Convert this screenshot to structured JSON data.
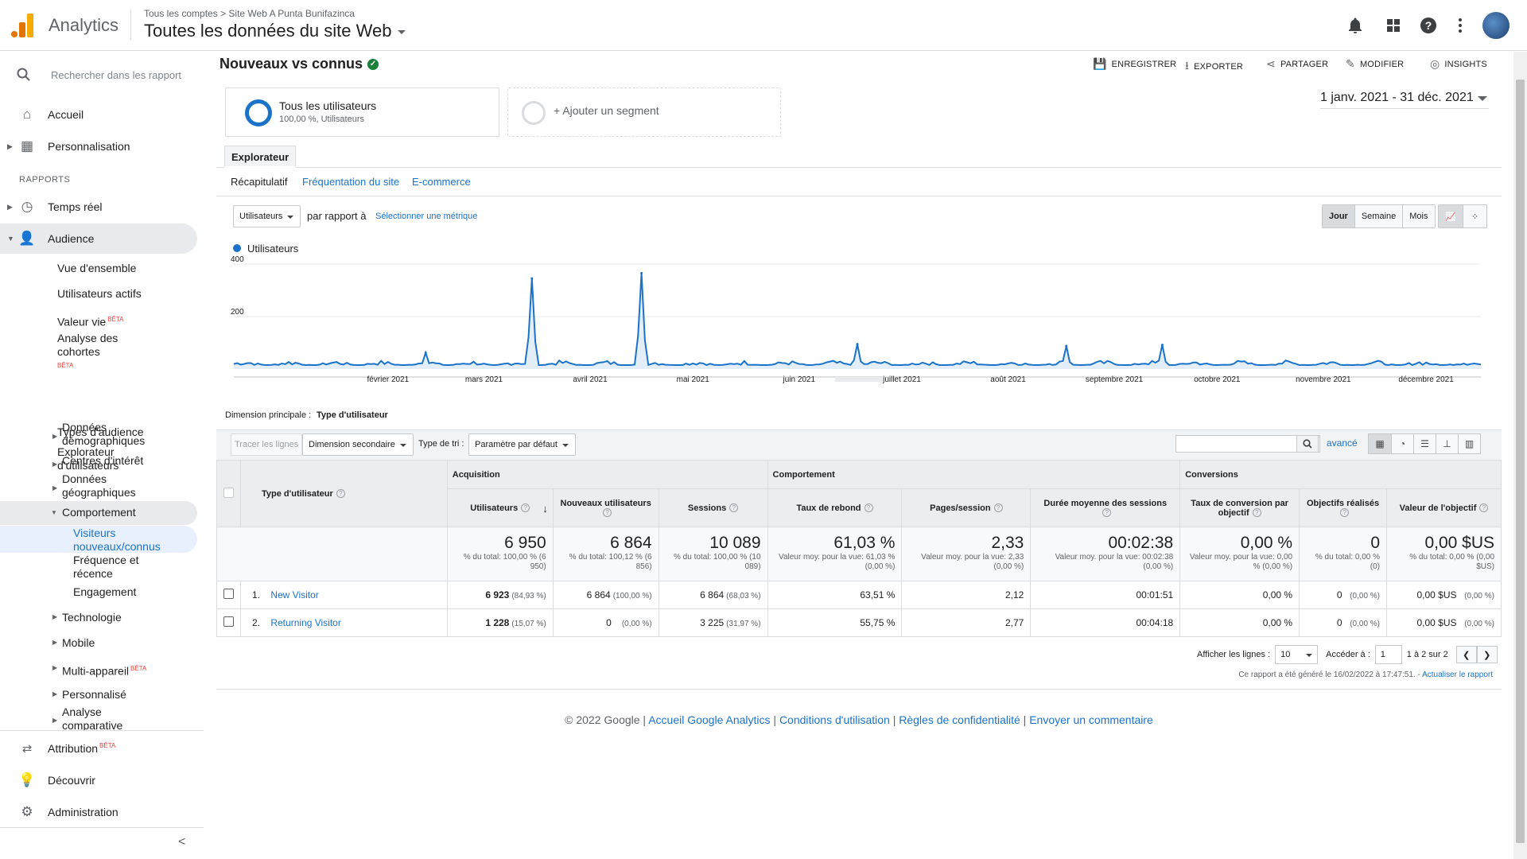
{
  "header": {
    "app_name": "Analytics",
    "breadcrumb_account": "Tous les comptes",
    "breadcrumb_sep": ">",
    "breadcrumb_property": "Site Web A Punta Bunifazinca",
    "view_title": "Toutes les données du site Web",
    "icons": [
      "bell-icon",
      "apps-grid-icon",
      "help-icon",
      "more-vert-icon",
      "avatar"
    ]
  },
  "sidebar": {
    "search_placeholder": "Rechercher dans les rapport",
    "home": "Accueil",
    "customization": "Personnalisation",
    "reports_section": "RAPPORTS",
    "realtime": "Temps réel",
    "audience": "Audience",
    "audience_items": {
      "overview": "Vue d'ensemble",
      "active_users": "Utilisateurs actifs",
      "lifetime_value": "Valeur vie",
      "cohort_line1": "Analyse des",
      "cohort_line2": "cohortes",
      "audiences": "Types d'audience",
      "explorer_line1": "Explorateur",
      "explorer_line2": "d'utilisateurs",
      "demographics_line1": "Données",
      "demographics_line2": "démographiques",
      "interests": "Centres d'intérêt",
      "geo_line1": "Données",
      "geo_line2": "géographiques",
      "behavior": "Comportement",
      "new_vs_returning_line1": "Visiteurs",
      "new_vs_returning_line2": "nouveaux/connus",
      "frequency_line1": "Fréquence et",
      "frequency_line2": "récence",
      "engagement": "Engagement",
      "technology": "Technologie",
      "mobile": "Mobile",
      "cross_device": "Multi-appareil",
      "custom": "Personnalisé",
      "benchmarking_line1": "Analyse",
      "benchmarking_line2": "comparative"
    },
    "beta": "BÊTA",
    "attribution": "Attribution",
    "discover": "Découvrir",
    "admin": "Administration",
    "collapse_icon": "<"
  },
  "report": {
    "title": "Nouveaux vs connus",
    "actions": {
      "save": "ENREGISTRER",
      "export": "EXPORTER",
      "share": "PARTAGER",
      "edit": "MODIFIER",
      "insights": "INSIGHTS"
    },
    "segment_name": "Tous les utilisateurs",
    "segment_detail": "100,00 %, Utilisateurs",
    "add_segment": "+ Ajouter un segment",
    "date_range": "1 janv. 2021 - 31 déc. 2021",
    "explorer_tab": "Explorateur",
    "subtabs": [
      "Récapitulatif",
      "Fréquentation du site",
      "E-commerce"
    ],
    "metric_select": "Utilisateurs",
    "compare_text": "par rapport à",
    "select_metric": "Sélectionner une métrique",
    "granularity": [
      "Jour",
      "Semaine",
      "Mois"
    ],
    "primary_dimension_label": "Dimension principale :",
    "primary_dimension_value": "Type d'utilisateur",
    "plot_rows": "Tracer les lignes",
    "secondary_dimension": "Dimension secondaire",
    "sort_type_label": "Type de tri :",
    "sort_type_value": "Paramètre par défaut",
    "advanced": "avancé"
  },
  "chart_data": {
    "type": "line",
    "series": [
      {
        "name": "Utilisateurs"
      }
    ],
    "ytick_labels": [
      "400",
      "200"
    ],
    "ylim": [
      0,
      400
    ],
    "x_ticks": [
      "février 2021",
      "mars 2021",
      "avril 2021",
      "mai 2021",
      "juin 2021",
      "juillet 2021",
      "août 2021",
      "septembre 2021",
      "octobre 2021",
      "novembre 2021",
      "décembre 2021"
    ],
    "peaks": [
      {
        "date": "2021-02-26",
        "value": 62
      },
      {
        "date": "2021-03-29",
        "value": 345
      },
      {
        "date": "2021-04-30",
        "value": 365
      },
      {
        "date": "2021-07-02",
        "value": 95
      },
      {
        "date": "2021-09-01",
        "value": 88
      },
      {
        "date": "2021-09-29",
        "value": 92
      }
    ],
    "baseline_range": [
      5,
      45
    ],
    "color": "#1a73c8"
  },
  "table": {
    "group_headers": [
      "Acquisition",
      "Comportement",
      "Conversions"
    ],
    "dimension_header": "Type d'utilisateur",
    "columns": [
      "Utilisateurs",
      "Nouveaux utilisateurs",
      "Sessions",
      "Taux de rebond",
      "Pages/session",
      "Durée moyenne des sessions",
      "Taux de conversion par objectif",
      "Objectifs réalisés",
      "Valeur de l'objectif"
    ],
    "totals": [
      {
        "value": "6 950",
        "sub": "% du total: 100,00 % (6 950)"
      },
      {
        "value": "6 864",
        "sub": "% du total: 100,12 % (6 856)"
      },
      {
        "value": "10 089",
        "sub": "% du total: 100,00 % (10 089)"
      },
      {
        "value": "61,03 %",
        "sub": "Valeur moy. pour la vue: 61,03 % (0,00 %)"
      },
      {
        "value": "2,33",
        "sub": "Valeur moy. pour la vue: 2,33 (0,00 %)"
      },
      {
        "value": "00:02:38",
        "sub": "Valeur moy. pour la vue: 00:02:38 (0,00 %)"
      },
      {
        "value": "0,00 %",
        "sub": "Valeur moy. pour la vue: 0,00 % (0,00 %)"
      },
      {
        "value": "0",
        "sub": "% du total: 0,00 % (0)"
      },
      {
        "value": "0,00 $US",
        "sub": "% du total: 0,00 % (0,00 $US)"
      }
    ],
    "rows": [
      {
        "index": "1.",
        "name": "New Visitor",
        "users": "6 923",
        "users_pct": "(84,93 %)",
        "new_users": "6 864",
        "new_users_pct": "(100,00 %)",
        "sessions": "6 864",
        "sessions_pct": "(68,03 %)",
        "bounce": "63,51 %",
        "pages": "2,12",
        "duration": "00:01:51",
        "conv_rate": "0,00 %",
        "goals": "0",
        "goals_pct": "(0,00 %)",
        "value": "0,00 $US",
        "value_pct": "(0,00 %)"
      },
      {
        "index": "2.",
        "name": "Returning Visitor",
        "users": "1 228",
        "users_pct": "(15,07 %)",
        "new_users": "0",
        "new_users_pct": "(0,00 %)",
        "sessions": "3 225",
        "sessions_pct": "(31,97 %)",
        "bounce": "55,75 %",
        "pages": "2,77",
        "duration": "00:04:18",
        "conv_rate": "0,00 %",
        "goals": "0",
        "goals_pct": "(0,00 %)",
        "value": "0,00 $US",
        "value_pct": "(0,00 %)"
      }
    ],
    "show_rows_label": "Afficher les lignes :",
    "show_rows_value": "10",
    "goto_label": "Accéder à :",
    "goto_value": "1",
    "range_text": "1 à 2 sur 2",
    "generated_text": "Ce rapport a été généré le 16/02/2022 à 17:47:51. -",
    "refresh_link": "Actualiser le rapport"
  },
  "footer": {
    "copyright": "© 2022 Google |",
    "links": [
      "Accueil Google Analytics",
      "Conditions d'utilisation",
      "Règles de confidentialité",
      "Envoyer un commentaire"
    ],
    "sep": "|"
  },
  "colors": {
    "accent": "#1a73c8",
    "logo_orange": "#f9ab00",
    "logo_dark_orange": "#e37400",
    "verified_green": "#188038"
  }
}
